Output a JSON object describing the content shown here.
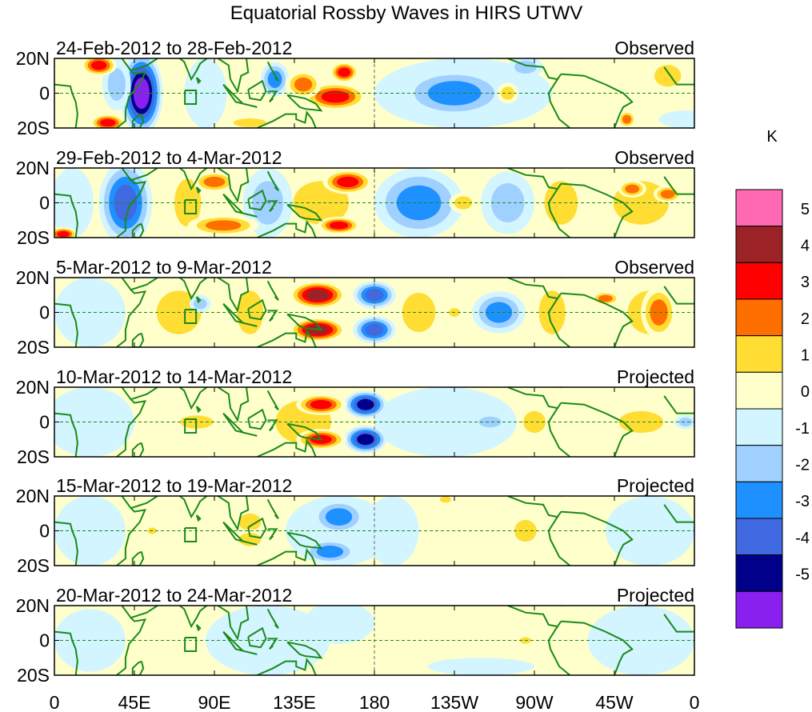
{
  "chart_data": {
    "type": "heatmap",
    "title": "Equatorial Rossby Waves in HIRS UTWV",
    "units": "K",
    "x_ticks": [
      "0",
      "45E",
      "90E",
      "135E",
      "180",
      "135W",
      "90W",
      "45W",
      "0"
    ],
    "x_tick_lons": [
      0,
      45,
      90,
      135,
      180,
      225,
      270,
      315,
      360
    ],
    "y_ticks": [
      "20N",
      "0",
      "20S"
    ],
    "y_tick_lats": [
      20,
      0,
      -20
    ],
    "lon_range": [
      0,
      360
    ],
    "lat_range": [
      -20,
      20
    ],
    "colorbar": {
      "labels": [
        "5",
        "4",
        "3",
        "2",
        "1",
        "0",
        "-1",
        "-2",
        "-3",
        "-4",
        "-5"
      ],
      "colors": [
        "#ff69b4",
        "#9b2226",
        "#ff0000",
        "#ff6f00",
        "#ffdd33",
        "#ffffcc",
        "#d2f5ff",
        "#a0d0ff",
        "#1e90ff",
        "#4169e1",
        "#00008b",
        "#8a20f0"
      ]
    },
    "panels": [
      {
        "label": "24-Feb-2012 to 28-Feb-2012",
        "status": "Observed",
        "features": [
          {
            "lon": 230,
            "lat": 0,
            "rx": 50,
            "ry": 20,
            "v": -0.8
          },
          {
            "lon": 225,
            "lat": 0,
            "rx": 30,
            "ry": 14,
            "v": -2.5
          },
          {
            "lon": 49,
            "lat": 0,
            "rx": 12,
            "ry": 24,
            "v": -5.2
          },
          {
            "lon": 35,
            "lat": 5,
            "rx": 8,
            "ry": 15,
            "v": -1.5
          },
          {
            "lon": 25,
            "lat": 16,
            "rx": 10,
            "ry": 6,
            "v": 3.5
          },
          {
            "lon": 30,
            "lat": -17,
            "rx": 10,
            "ry": 5,
            "v": 3.5
          },
          {
            "lon": 85,
            "lat": 0,
            "rx": 12,
            "ry": 20,
            "v": -0.5
          },
          {
            "lon": 110,
            "lat": -17,
            "rx": 15,
            "ry": 4,
            "v": 1.5
          },
          {
            "lon": 124,
            "lat": 8,
            "rx": 8,
            "ry": 10,
            "v": -2.5
          },
          {
            "lon": 158,
            "lat": -2,
            "rx": 18,
            "ry": 8,
            "v": 3.5
          },
          {
            "lon": 163,
            "lat": 12,
            "rx": 8,
            "ry": 6,
            "v": 3.5
          },
          {
            "lon": 140,
            "lat": 5,
            "rx": 10,
            "ry": 8,
            "v": 2.5
          },
          {
            "lon": 255,
            "lat": 0,
            "rx": 6,
            "ry": 6,
            "v": 1.5
          },
          {
            "lon": 265,
            "lat": 15,
            "rx": 10,
            "ry": 6,
            "v": -1.5
          },
          {
            "lon": 322,
            "lat": -15,
            "rx": 5,
            "ry": 5,
            "v": 2.5
          },
          {
            "lon": 345,
            "lat": 10,
            "rx": 12,
            "ry": 10,
            "v": 1.5
          },
          {
            "lon": 355,
            "lat": -15,
            "rx": 15,
            "ry": 5,
            "v": -0.8
          }
        ]
      },
      {
        "label": "29-Feb-2012 to 4-Mar-2012",
        "status": "Observed",
        "features": [
          {
            "lon": 40,
            "lat": 0,
            "rx": 15,
            "ry": 24,
            "v": -3.5
          },
          {
            "lon": 10,
            "lat": 0,
            "rx": 12,
            "ry": 20,
            "v": -0.8
          },
          {
            "lon": 5,
            "lat": -18,
            "rx": 8,
            "ry": 4,
            "v": 3.5
          },
          {
            "lon": 75,
            "lat": 0,
            "rx": 12,
            "ry": 22,
            "v": 1.5
          },
          {
            "lon": 90,
            "lat": 12,
            "rx": 12,
            "ry": 6,
            "v": 2.5
          },
          {
            "lon": 95,
            "lat": -13,
            "rx": 20,
            "ry": 6,
            "v": 2.5
          },
          {
            "lon": 120,
            "lat": 0,
            "rx": 14,
            "ry": 20,
            "v": -1.5
          },
          {
            "lon": 150,
            "lat": 0,
            "rx": 25,
            "ry": 20,
            "v": 1.5
          },
          {
            "lon": 165,
            "lat": 12,
            "rx": 14,
            "ry": 7,
            "v": 3.5
          },
          {
            "lon": 160,
            "lat": -13,
            "rx": 12,
            "ry": 5,
            "v": 3.5
          },
          {
            "lon": 205,
            "lat": 0,
            "rx": 25,
            "ry": 20,
            "v": -2.5
          },
          {
            "lon": 230,
            "lat": 0,
            "rx": 8,
            "ry": 6,
            "v": 1.5
          },
          {
            "lon": 255,
            "lat": 0,
            "rx": 15,
            "ry": 18,
            "v": -1.5
          },
          {
            "lon": 285,
            "lat": 0,
            "rx": 15,
            "ry": 20,
            "v": 1.5
          },
          {
            "lon": 330,
            "lat": 0,
            "rx": 25,
            "ry": 20,
            "v": 1.5
          },
          {
            "lon": 325,
            "lat": 8,
            "rx": 8,
            "ry": 5,
            "v": 2.5
          },
          {
            "lon": 345,
            "lat": 5,
            "rx": 8,
            "ry": 5,
            "v": 2.5
          }
        ]
      },
      {
        "label": "5-Mar-2012 to 9-Mar-2012",
        "status": "Observed",
        "features": [
          {
            "lon": 20,
            "lat": 0,
            "rx": 20,
            "ry": 20,
            "v": -0.8
          },
          {
            "lon": 70,
            "lat": 0,
            "rx": 20,
            "ry": 20,
            "v": 1.5
          },
          {
            "lon": 82,
            "lat": 5,
            "rx": 6,
            "ry": 5,
            "v": -1.5
          },
          {
            "lon": 110,
            "lat": 0,
            "rx": 12,
            "ry": 20,
            "v": 1.5
          },
          {
            "lon": 148,
            "lat": 10,
            "rx": 16,
            "ry": 8,
            "v": 4.3
          },
          {
            "lon": 148,
            "lat": -10,
            "rx": 16,
            "ry": 7,
            "v": 4.3
          },
          {
            "lon": 180,
            "lat": 10,
            "rx": 12,
            "ry": 8,
            "v": -3.5
          },
          {
            "lon": 180,
            "lat": -10,
            "rx": 12,
            "ry": 8,
            "v": -3.5
          },
          {
            "lon": 205,
            "lat": 0,
            "rx": 15,
            "ry": 18,
            "v": 1.5
          },
          {
            "lon": 250,
            "lat": 0,
            "rx": 15,
            "ry": 12,
            "v": -2.5
          },
          {
            "lon": 225,
            "lat": 0,
            "rx": 5,
            "ry": 4,
            "v": 1.5
          },
          {
            "lon": 280,
            "lat": 0,
            "rx": 12,
            "ry": 20,
            "v": 1.5
          },
          {
            "lon": 335,
            "lat": 0,
            "rx": 20,
            "ry": 20,
            "v": 1.5
          },
          {
            "lon": 310,
            "lat": 8,
            "rx": 8,
            "ry": 4,
            "v": 2.5
          },
          {
            "lon": 340,
            "lat": 0,
            "rx": 10,
            "ry": 15,
            "v": 2.5
          }
        ]
      },
      {
        "label": "10-Mar-2012 to 14-Mar-2012",
        "status": "Projected",
        "features": [
          {
            "lon": 20,
            "lat": 0,
            "rx": 25,
            "ry": 20,
            "v": -0.8
          },
          {
            "lon": 80,
            "lat": 0,
            "rx": 15,
            "ry": 6,
            "v": 1.5
          },
          {
            "lon": 140,
            "lat": 0,
            "rx": 25,
            "ry": 20,
            "v": 1.5
          },
          {
            "lon": 150,
            "lat": 10,
            "rx": 14,
            "ry": 6,
            "v": 3.5
          },
          {
            "lon": 150,
            "lat": -10,
            "rx": 14,
            "ry": 6,
            "v": 3.5
          },
          {
            "lon": 175,
            "lat": 10,
            "rx": 12,
            "ry": 8,
            "v": -4.2
          },
          {
            "lon": 175,
            "lat": -10,
            "rx": 12,
            "ry": 8,
            "v": -4.2
          },
          {
            "lon": 220,
            "lat": 0,
            "rx": 40,
            "ry": 20,
            "v": -0.8
          },
          {
            "lon": 245,
            "lat": 0,
            "rx": 10,
            "ry": 5,
            "v": -1.5
          },
          {
            "lon": 270,
            "lat": 0,
            "rx": 10,
            "ry": 10,
            "v": 1.5
          },
          {
            "lon": 330,
            "lat": 0,
            "rx": 20,
            "ry": 10,
            "v": 1.5
          },
          {
            "lon": 355,
            "lat": 0,
            "rx": 6,
            "ry": 4,
            "v": -1.5
          }
        ]
      },
      {
        "label": "15-Mar-2012 to 19-Mar-2012",
        "status": "Projected",
        "features": [
          {
            "lon": 20,
            "lat": 0,
            "rx": 20,
            "ry": 20,
            "v": -0.8
          },
          {
            "lon": 55,
            "lat": 0,
            "rx": 4,
            "ry": 3,
            "v": 1.5
          },
          {
            "lon": 110,
            "lat": 5,
            "rx": 10,
            "ry": 8,
            "v": 1.5
          },
          {
            "lon": 110,
            "lat": -5,
            "rx": 10,
            "ry": 6,
            "v": 1.5
          },
          {
            "lon": 160,
            "lat": 0,
            "rx": 30,
            "ry": 20,
            "v": -0.8
          },
          {
            "lon": 160,
            "lat": 8,
            "rx": 15,
            "ry": 10,
            "v": -2.5
          },
          {
            "lon": 155,
            "lat": -12,
            "rx": 15,
            "ry": 7,
            "v": -2.5
          },
          {
            "lon": 190,
            "lat": 0,
            "rx": 15,
            "ry": 20,
            "v": -0.8
          },
          {
            "lon": 265,
            "lat": 0,
            "rx": 10,
            "ry": 10,
            "v": 1.5
          },
          {
            "lon": 220,
            "lat": 18,
            "rx": 5,
            "ry": 3,
            "v": 1.5
          },
          {
            "lon": 335,
            "lat": 0,
            "rx": 25,
            "ry": 20,
            "v": -0.8
          }
        ]
      },
      {
        "label": "20-Mar-2012 to 24-Mar-2012",
        "status": "Projected",
        "features": [
          {
            "lon": 20,
            "lat": 0,
            "rx": 20,
            "ry": 18,
            "v": -0.8
          },
          {
            "lon": 120,
            "lat": 0,
            "rx": 35,
            "ry": 20,
            "v": -0.8
          },
          {
            "lon": 160,
            "lat": 10,
            "rx": 20,
            "ry": 12,
            "v": -0.8
          },
          {
            "lon": 265,
            "lat": 0,
            "rx": 5,
            "ry": 3,
            "v": 1.5
          },
          {
            "lon": 330,
            "lat": 0,
            "rx": 30,
            "ry": 20,
            "v": -0.8
          },
          {
            "lon": 240,
            "lat": -15,
            "rx": 30,
            "ry": 5,
            "v": -0.8
          }
        ]
      }
    ]
  }
}
